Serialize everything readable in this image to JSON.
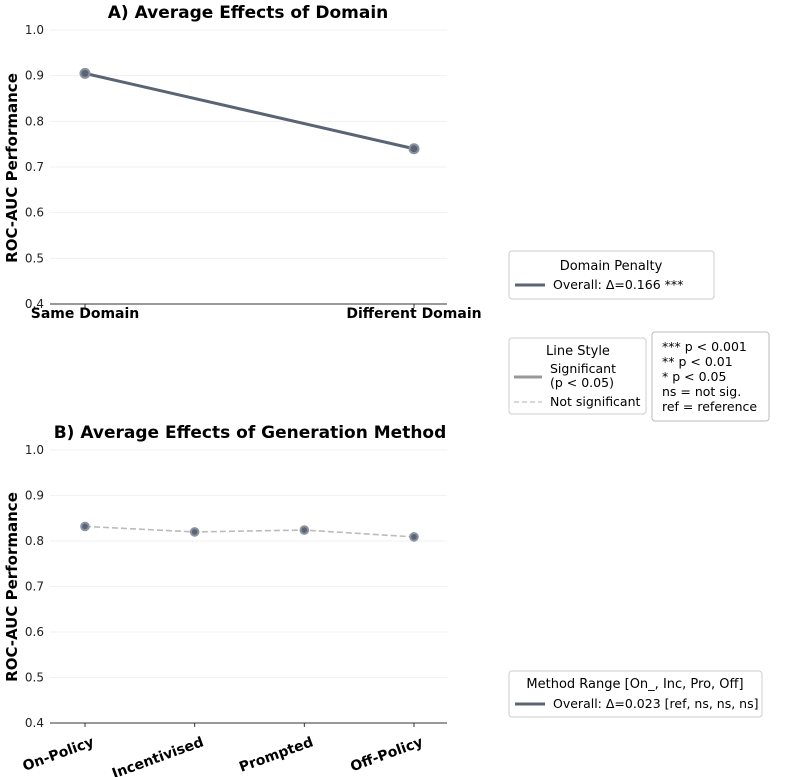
{
  "chart_data": [
    {
      "type": "line",
      "title": "A) Average Effects of Domain",
      "ylabel": "ROC-AUC Performance",
      "xlabel": "",
      "ylim": [
        0.4,
        1.0
      ],
      "yticks": [
        "0.4",
        "0.5",
        "0.6",
        "0.7",
        "0.8",
        "0.9",
        "1.0"
      ],
      "categories": [
        "Same Domain",
        "Different Domain"
      ],
      "series": [
        {
          "name": "Overall",
          "values": [
            0.905,
            0.74
          ],
          "style": "solid",
          "color": "#5a6474"
        }
      ],
      "legend": {
        "title": "Domain Penalty",
        "entries": [
          "Overall: Δ=0.166 ***"
        ],
        "position": "right"
      }
    },
    {
      "type": "line",
      "title": "B) Average Effects of Generation Method",
      "ylabel": "ROC-AUC Performance",
      "xlabel": "",
      "ylim": [
        0.4,
        1.0
      ],
      "yticks": [
        "0.4",
        "0.5",
        "0.6",
        "0.7",
        "0.8",
        "0.9",
        "1.0"
      ],
      "categories": [
        "On-Policy",
        "Incentivised",
        "Prompted",
        "Off-Policy"
      ],
      "series": [
        {
          "name": "Overall",
          "values": [
            0.832,
            0.82,
            0.824,
            0.809
          ],
          "style": "dashed",
          "color": "#bbbbbb"
        }
      ],
      "legend": {
        "title": "Method Range [On_, Inc, Pro, Off]",
        "entries": [
          "Overall: Δ=0.023 [ref, ns, ns, ns]"
        ],
        "position": "right"
      }
    }
  ],
  "line_style_legend": {
    "title": "Line Style",
    "significant_line1": "Significant",
    "significant_line2": "(p < 0.05)",
    "not_significant": "Not significant",
    "significant_color": "#999999",
    "not_significant_color": "#cccccc"
  },
  "significance_key": [
    "*** p < 0.001",
    "** p < 0.01",
    "* p < 0.05",
    "ns = not sig.",
    "ref = reference"
  ],
  "colors": {
    "marker": "#5a6474",
    "marker_edge": "#8a93a0",
    "axis": "#333333",
    "grid": "#eeeeee"
  }
}
